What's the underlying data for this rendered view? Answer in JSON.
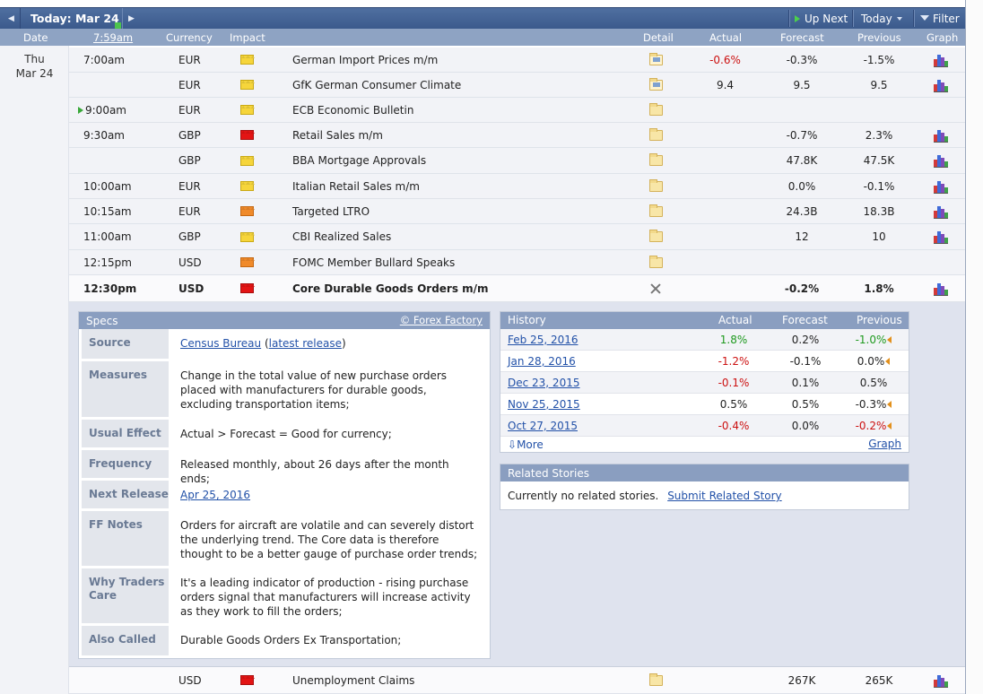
{
  "topbar": {
    "prev_icon": "triangle-left-icon",
    "next_icon": "triangle-right-icon",
    "today_label": "Today: Mar 24",
    "up_next": "Up Next",
    "today_menu": "Today",
    "filter": "Filter"
  },
  "columns": {
    "date": "Date",
    "time": "7:59am",
    "currency": "Currency",
    "impact": "Impact",
    "detail": "Detail",
    "actual": "Actual",
    "forecast": "Forecast",
    "previous": "Previous",
    "graph": "Graph"
  },
  "day": {
    "weekday": "Thu",
    "date": "Mar 24"
  },
  "impact_colors": {
    "low": "#f6d53b",
    "medium": "#f08a2a",
    "high": "#e31414"
  },
  "events": [
    {
      "time": "7:00am",
      "currency": "EUR",
      "impact": "low",
      "name": "German Import Prices m/m",
      "actual": "-0.6%",
      "actual_class": "neg",
      "forecast": "-0.3%",
      "previous": "-1.5%"
    },
    {
      "time": "",
      "currency": "EUR",
      "impact": "low",
      "name": "GfK German Consumer Climate",
      "actual": "9.4",
      "actual_class": "",
      "forecast": "9.5",
      "previous": "9.5"
    },
    {
      "time": "9:00am",
      "currency": "EUR",
      "impact": "low",
      "name": "ECB Economic Bulletin",
      "actual": "",
      "actual_class": "",
      "forecast": "",
      "previous": ""
    },
    {
      "time": "9:30am",
      "currency": "GBP",
      "impact": "high",
      "name": "Retail Sales m/m",
      "actual": "",
      "actual_class": "",
      "forecast": "-0.7%",
      "previous": "2.3%"
    },
    {
      "time": "",
      "currency": "GBP",
      "impact": "low",
      "name": "BBA Mortgage Approvals",
      "actual": "",
      "actual_class": "",
      "forecast": "47.8K",
      "previous": "47.5K"
    },
    {
      "time": "10:00am",
      "currency": "EUR",
      "impact": "low",
      "name": "Italian Retail Sales m/m",
      "actual": "",
      "actual_class": "",
      "forecast": "0.0%",
      "previous": "-0.1%"
    },
    {
      "time": "10:15am",
      "currency": "EUR",
      "impact": "medium",
      "name": "Targeted LTRO",
      "actual": "",
      "actual_class": "",
      "forecast": "24.3B",
      "previous": "18.3B"
    },
    {
      "time": "11:00am",
      "currency": "GBP",
      "impact": "low",
      "name": "CBI Realized Sales",
      "actual": "",
      "actual_class": "",
      "forecast": "12",
      "previous": "10"
    },
    {
      "time": "12:15pm",
      "currency": "USD",
      "impact": "medium",
      "name": "FOMC Member Bullard Speaks",
      "actual": "",
      "actual_class": "",
      "forecast": "",
      "previous": ""
    },
    {
      "time": "12:30pm",
      "currency": "USD",
      "impact": "high",
      "name": "Core Durable Goods Orders m/m",
      "actual": "",
      "actual_class": "",
      "forecast": "-0.2%",
      "previous": "1.8%"
    },
    {
      "time": "",
      "currency": "USD",
      "impact": "high",
      "name": "Unemployment Claims",
      "actual": "",
      "actual_class": "",
      "forecast": "267K",
      "previous": "265K"
    }
  ],
  "specs": {
    "title": "Specs",
    "credit": "© Forex Factory",
    "source_label": "Source",
    "source_link": "Census Bureau",
    "source_open": "(",
    "source_latest": "latest release",
    "source_close": ")",
    "measures_label": "Measures",
    "measures": "Change in the total value of new purchase orders placed with manufacturers for durable goods, excluding transportation items;",
    "usual_effect_label": "Usual Effect",
    "usual_effect": "Actual > Forecast = Good for currency;",
    "frequency_label": "Frequency",
    "frequency": "Released monthly, about 26 days after the month ends;",
    "next_release_label": "Next Release",
    "next_release": "Apr 25, 2016",
    "ff_notes_label": "FF Notes",
    "ff_notes": "Orders for aircraft are volatile and can severely distort the underlying trend. The Core data is therefore thought to be a better gauge of purchase order trends;",
    "why_label": "Why Traders Care",
    "why": "It's a leading indicator of production - rising purchase orders signal that manufacturers will increase activity as they work to fill the orders;",
    "also_label": "Also Called",
    "also": "Durable Goods Orders Ex Transportation;"
  },
  "history": {
    "title": "History",
    "actual": "Actual",
    "forecast": "Forecast",
    "previous": "Previous",
    "rows": [
      {
        "date": "Feb 25, 2016",
        "actual": "1.8%",
        "actual_class": "pos",
        "forecast": "0.2%",
        "previous": "-1.0%",
        "previous_class": "pos",
        "revised": true
      },
      {
        "date": "Jan 28, 2016",
        "actual": "-1.2%",
        "actual_class": "neg",
        "forecast": "-0.1%",
        "previous": "0.0%",
        "previous_class": "",
        "revised": true
      },
      {
        "date": "Dec 23, 2015",
        "actual": "-0.1%",
        "actual_class": "neg",
        "forecast": "0.1%",
        "previous": "0.5%",
        "previous_class": "",
        "revised": false
      },
      {
        "date": "Nov 25, 2015",
        "actual": "0.5%",
        "actual_class": "",
        "forecast": "0.5%",
        "previous": "-0.3%",
        "previous_class": "",
        "revised": true
      },
      {
        "date": "Oct 27, 2015",
        "actual": "-0.4%",
        "actual_class": "neg",
        "forecast": "0.0%",
        "previous": "-0.2%",
        "previous_class": "neg",
        "revised": true
      }
    ],
    "more": "More",
    "graph": "Graph"
  },
  "related": {
    "title": "Related Stories",
    "text": "Currently no related stories.",
    "submit": "Submit Related Story"
  }
}
